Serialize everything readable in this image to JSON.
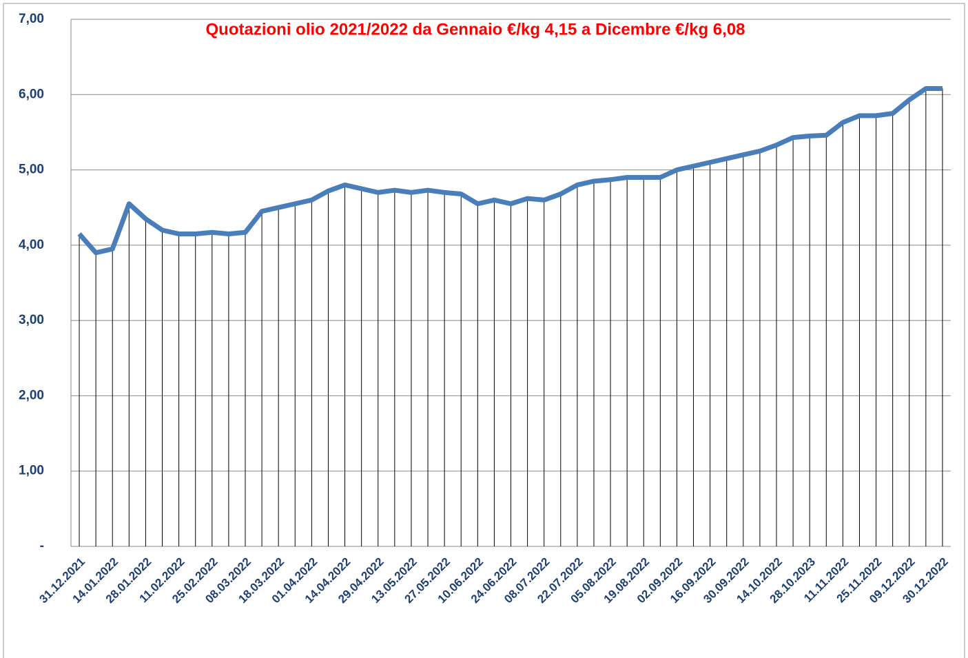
{
  "chart_data": {
    "type": "line",
    "title": "Quotazioni olio 2021/2022 da Gennaio €/kg 4,15 a Dicembre €/kg 6,08",
    "categories": [
      "31.12.2021",
      null,
      "14.01.2022",
      null,
      "28.01.2022",
      null,
      "11.02.2022",
      null,
      "25.02.2022",
      null,
      "08.03.2022",
      null,
      "18.03.2022",
      null,
      "01.04.2022",
      null,
      "14.04.2022",
      null,
      "29.04.2022",
      null,
      "13.05.2022",
      null,
      "27.05.2022",
      null,
      "10.06.2022",
      null,
      "24.06.2022",
      null,
      "08.07.2022",
      null,
      "22.07.2022",
      null,
      "05.08.2022",
      null,
      "19.08.2022",
      null,
      "02.09.2022",
      null,
      "16.09.2022",
      null,
      "30.09.2022",
      null,
      "14.10.2022",
      null,
      "28.10.2023",
      null,
      "11.11.2022",
      null,
      "25.11.2022",
      null,
      "09.12.2022",
      null,
      "30.12.2022"
    ],
    "values": [
      4.15,
      3.9,
      3.95,
      4.55,
      4.35,
      4.2,
      4.15,
      4.15,
      4.17,
      4.15,
      4.17,
      4.45,
      4.5,
      4.55,
      4.6,
      4.72,
      4.8,
      4.75,
      4.7,
      4.73,
      4.7,
      4.73,
      4.7,
      4.68,
      4.55,
      4.6,
      4.55,
      4.62,
      4.6,
      4.68,
      4.8,
      4.85,
      4.87,
      4.9,
      4.9,
      4.9,
      5.0,
      5.05,
      5.1,
      5.15,
      5.2,
      5.25,
      5.33,
      5.43,
      5.45,
      5.46,
      5.63,
      5.72,
      5.72,
      5.75,
      5.93,
      6.08,
      6.08
    ],
    "color": "#4a7ebb",
    "ylim": [
      0,
      7
    ],
    "yticks": [
      {
        "value": 0,
        "label": "-"
      },
      {
        "value": 1,
        "label": "1,00"
      },
      {
        "value": 2,
        "label": "2,00"
      },
      {
        "value": 3,
        "label": "3,00"
      },
      {
        "value": 4,
        "label": "4,00"
      },
      {
        "value": 5,
        "label": "5,00"
      },
      {
        "value": 6,
        "label": "6,00"
      },
      {
        "value": 7,
        "label": "7,00"
      }
    ],
    "grid": true,
    "drop_lines": true
  }
}
